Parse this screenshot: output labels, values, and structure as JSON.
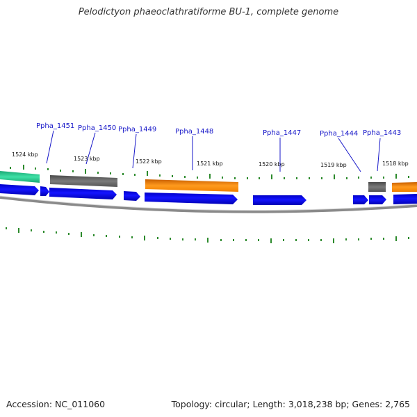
{
  "title": "Pelodictyon phaeoclathratiforme BU-1, complete genome",
  "accession": "Accession: NC_011060",
  "summary": "Topology: circular; Length: 3,018,238 bp; Genes: 2,765",
  "colors": {
    "cds_forward": "#0b0bef",
    "feature_green": "#2fd69a",
    "feature_gray": "#6b6b6b",
    "feature_orange": "#ff8c00",
    "backbone": "#8a8a8a",
    "tick": "#2c8a2c",
    "label_text": "#1515c8"
  },
  "kbp_ticks": [
    {
      "label": "1524 kbp"
    },
    {
      "label": "1523 kbp"
    },
    {
      "label": "1522 kbp"
    },
    {
      "label": "1521 kbp"
    },
    {
      "label": "1520 kbp"
    },
    {
      "label": "1519 kbp"
    },
    {
      "label": "1518 kbp"
    }
  ],
  "gene_labels": [
    {
      "label": "Ppha_1451"
    },
    {
      "label": "Ppha_1450"
    },
    {
      "label": "Ppha_1449"
    },
    {
      "label": "Ppha_1448"
    },
    {
      "label": "Ppha_1447"
    },
    {
      "label": "Ppha_1444"
    },
    {
      "label": "Ppha_1443"
    }
  ]
}
